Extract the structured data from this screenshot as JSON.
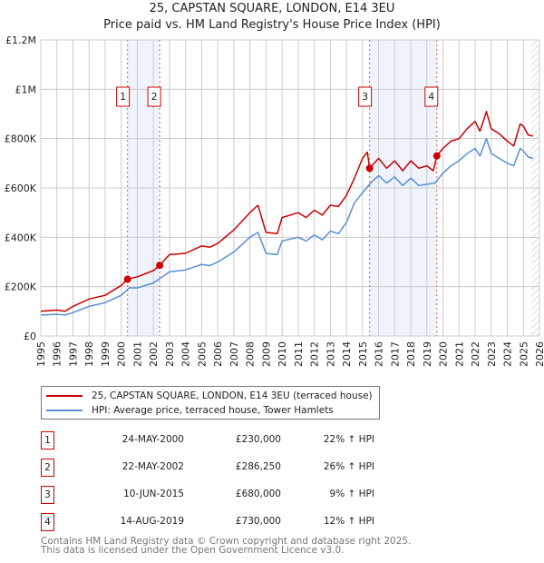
{
  "chart_data": {
    "type": "line",
    "title": "25, CAPSTAN SQUARE, LONDON, E14 3EU",
    "subtitle": "Price paid vs. HM Land Registry's House Price Index (HPI)",
    "xlim": [
      1995,
      2026
    ],
    "ylim": [
      0,
      1200000
    ],
    "y_ticks": [
      {
        "v": 0,
        "label": "£0"
      },
      {
        "v": 200000,
        "label": "£200K"
      },
      {
        "v": 400000,
        "label": "£400K"
      },
      {
        "v": 600000,
        "label": "£600K"
      },
      {
        "v": 800000,
        "label": "£800K"
      },
      {
        "v": 1000000,
        "label": "£1M"
      },
      {
        "v": 1200000,
        "label": "£1.2M"
      }
    ],
    "x_ticks": [
      "1995",
      "1996",
      "1997",
      "1998",
      "1999",
      "2000",
      "2001",
      "2002",
      "2003",
      "2004",
      "2005",
      "2006",
      "2007",
      "2008",
      "2009",
      "2010",
      "2011",
      "2012",
      "2013",
      "2014",
      "2015",
      "2016",
      "2017",
      "2018",
      "2019",
      "2020",
      "2021",
      "2022",
      "2023",
      "2024",
      "2025",
      "2026"
    ],
    "grid": true,
    "series": [
      {
        "name": "25, CAPSTAN SQUARE, LONDON, E14 3EU (terraced house)",
        "color": "#cc0000",
        "x": [
          1995,
          1996,
          1996.5,
          1997,
          1998,
          1999,
          2000,
          2000.39,
          2001,
          2002,
          2002.39,
          2003,
          2004,
          2005,
          2005.5,
          2006,
          2007,
          2008,
          2008.5,
          2009,
          2009.7,
          2010,
          2011,
          2011.5,
          2012,
          2012.5,
          2013,
          2013.5,
          2014,
          2014.5,
          2015,
          2015.3,
          2015.44,
          2016,
          2016.5,
          2017,
          2017.5,
          2018,
          2018.5,
          2019,
          2019.4,
          2019.62,
          2020,
          2020.5,
          2021,
          2021.5,
          2022,
          2022.3,
          2022.7,
          2023,
          2023.5,
          2024,
          2024.4,
          2024.8,
          2025,
          2025.3,
          2025.6
        ],
        "y": [
          100000,
          105000,
          100000,
          120000,
          150000,
          165000,
          205000,
          230000,
          240000,
          265000,
          286250,
          330000,
          335000,
          365000,
          360000,
          375000,
          430000,
          500000,
          530000,
          420000,
          415000,
          480000,
          500000,
          480000,
          510000,
          490000,
          530000,
          525000,
          570000,
          640000,
          720000,
          745000,
          680000,
          720000,
          680000,
          710000,
          670000,
          710000,
          680000,
          690000,
          670000,
          730000,
          760000,
          790000,
          800000,
          840000,
          870000,
          830000,
          910000,
          840000,
          820000,
          790000,
          770000,
          860000,
          850000,
          815000,
          810000
        ]
      },
      {
        "name": "HPI: Average price, terraced house, Tower Hamlets",
        "color": "#5b8fd4",
        "x": [
          1995,
          1996,
          1996.5,
          1997,
          1998,
          1999,
          2000,
          2000.5,
          2001,
          2002,
          2003,
          2004,
          2005,
          2005.5,
          2006,
          2007,
          2008,
          2008.5,
          2009,
          2009.7,
          2010,
          2011,
          2011.5,
          2012,
          2012.5,
          2013,
          2013.5,
          2014,
          2014.5,
          2015,
          2015.5,
          2016,
          2016.5,
          2017,
          2017.5,
          2018,
          2018.5,
          2019,
          2019.5,
          2020,
          2020.5,
          2021,
          2021.5,
          2022,
          2022.3,
          2022.7,
          2023,
          2023.5,
          2024,
          2024.4,
          2024.8,
          2025,
          2025.3,
          2025.6
        ],
        "y": [
          85000,
          88000,
          85000,
          95000,
          120000,
          135000,
          165000,
          195000,
          195000,
          215000,
          260000,
          268000,
          290000,
          285000,
          300000,
          340000,
          400000,
          420000,
          335000,
          330000,
          385000,
          400000,
          385000,
          410000,
          390000,
          425000,
          415000,
          460000,
          540000,
          580000,
          620000,
          650000,
          620000,
          645000,
          610000,
          640000,
          610000,
          615000,
          620000,
          660000,
          690000,
          710000,
          740000,
          760000,
          730000,
          800000,
          740000,
          720000,
          700000,
          690000,
          760000,
          750000,
          725000,
          720000
        ]
      }
    ],
    "sales": [
      {
        "n": "1",
        "x": 2000.39,
        "price": 230000
      },
      {
        "n": "2",
        "x": 2002.39,
        "price": 286250
      },
      {
        "n": "3",
        "x": 2015.44,
        "price": 680000
      },
      {
        "n": "4",
        "x": 2019.62,
        "price": 730000
      }
    ],
    "shaded_ranges": [
      [
        2000.39,
        2002.39
      ],
      [
        2015.44,
        2019.62
      ]
    ],
    "forecast_hatch_from": 2025.5
  },
  "legend": {
    "red_label": "25, CAPSTAN SQUARE, LONDON, E14 3EU (terraced house)",
    "blue_label": "HPI: Average price, terraced house, Tower Hamlets"
  },
  "table": [
    {
      "n": "1",
      "date": "24-MAY-2000",
      "price": "£230,000",
      "hpi": "22% ↑ HPI"
    },
    {
      "n": "2",
      "date": "22-MAY-2002",
      "price": "£286,250",
      "hpi": "26% ↑ HPI"
    },
    {
      "n": "3",
      "date": "10-JUN-2015",
      "price": "£680,000",
      "hpi": "9% ↑ HPI"
    },
    {
      "n": "4",
      "date": "14-AUG-2019",
      "price": "£730,000",
      "hpi": "12% ↑ HPI"
    }
  ],
  "footer": {
    "line1": "Contains HM Land Registry data © Crown copyright and database right 2025.",
    "line2": "This data is licensed under the Open Government Licence v3.0."
  }
}
